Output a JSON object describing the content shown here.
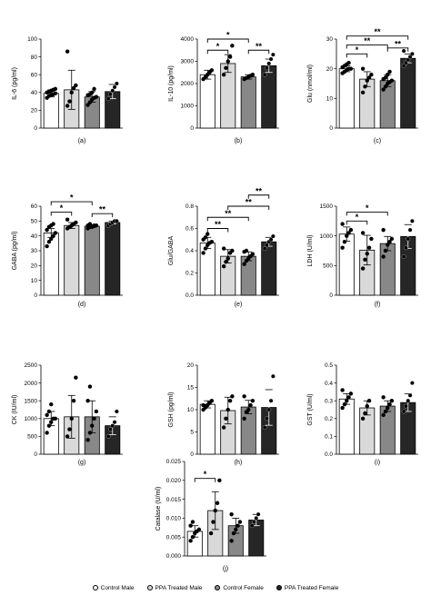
{
  "colors": {
    "control_male": "#ffffff",
    "ppa_male": "#d9d9d9",
    "control_female": "#888888",
    "ppa_female": "#262626"
  },
  "legend": [
    {
      "label": "Control Male",
      "color": "#ffffff"
    },
    {
      "label": "PPA Treated Male",
      "color": "#d9d9d9"
    },
    {
      "label": "Control Female",
      "color": "#888888"
    },
    {
      "label": "PPA Treated Female",
      "color": "#262626"
    }
  ],
  "chart_data": [
    {
      "type": "bar",
      "panel_label": "(a)",
      "ylabel": "IL-6 (pg/ml)",
      "ylim": [
        0,
        100
      ],
      "yticks": [
        "0",
        "20",
        "40",
        "60",
        "80",
        "100"
      ],
      "yticks_values": [
        0,
        20,
        40,
        60,
        80,
        100
      ],
      "values": [
        39,
        43,
        35,
        41
      ],
      "errors": [
        4,
        22,
        6,
        8
      ],
      "points": [
        [
          34,
          36,
          37,
          38,
          39,
          40,
          41,
          42,
          43,
          44
        ],
        [
          25,
          30,
          40,
          45,
          48,
          86
        ],
        [
          26,
          29,
          32,
          34,
          35,
          37,
          38,
          40,
          44
        ],
        [
          33,
          38,
          42,
          46,
          50
        ]
      ],
      "significance": []
    },
    {
      "type": "bar",
      "panel_label": "(b)",
      "ylabel": "IL-10 (pg/ml)",
      "ylim": [
        0,
        4000
      ],
      "yticks": [
        "0",
        "1000",
        "2000",
        "3000",
        "4000"
      ],
      "yticks_values": [
        0,
        1000,
        2000,
        3000,
        4000
      ],
      "values": [
        2400,
        2900,
        2300,
        2800
      ],
      "errors": [
        200,
        400,
        100,
        300
      ],
      "points": [
        [
          2200,
          2300,
          2400,
          2500,
          2600
        ],
        [
          2400,
          2700,
          3000,
          3200,
          3700
        ],
        [
          2200,
          2250,
          2300,
          2350,
          2400
        ],
        [
          2400,
          2700,
          2900,
          3100,
          3300
        ]
      ],
      "significance": [
        {
          "from": 0,
          "to": 1,
          "label": "*",
          "y": 3500
        },
        {
          "from": 0,
          "to": 2,
          "label": "*",
          "y": 4000
        },
        {
          "from": 2,
          "to": 3,
          "label": "**",
          "y": 3500
        }
      ]
    },
    {
      "type": "bar",
      "panel_label": "(c)",
      "ylabel": "Glu (nmol/ml)",
      "ylim": [
        0,
        30
      ],
      "yticks": [
        "0",
        "10",
        "20",
        "30"
      ],
      "yticks_values": [
        0,
        10,
        20,
        30
      ],
      "values": [
        20,
        16.5,
        16,
        23.5
      ],
      "errors": [
        1,
        2.5,
        2,
        1.5
      ],
      "points": [
        [
          18.5,
          19,
          19.5,
          20,
          20,
          20.5,
          21,
          21.5,
          22
        ],
        [
          12,
          14,
          16,
          17,
          18,
          20
        ],
        [
          13,
          14,
          15,
          15.5,
          16,
          16.5,
          17,
          18,
          19
        ],
        [
          21,
          22,
          23,
          24,
          25,
          26
        ]
      ],
      "significance": [
        {
          "from": 0,
          "to": 1,
          "label": "*",
          "y": 25
        },
        {
          "from": 0,
          "to": 2,
          "label": "**",
          "y": 28
        },
        {
          "from": 2,
          "to": 3,
          "label": "**",
          "y": 27
        },
        {
          "from": 0,
          "to": 3,
          "label": "**",
          "y": 31
        }
      ]
    },
    {
      "type": "bar",
      "panel_label": "(d)",
      "ylabel": "GABA (pg/ml)",
      "ylim": [
        0,
        60
      ],
      "yticks": [
        "0",
        "10",
        "20",
        "30",
        "40",
        "50",
        "60"
      ],
      "yticks_values": [
        0,
        10,
        20,
        30,
        40,
        50,
        60
      ],
      "values": [
        42,
        47,
        46.5,
        49
      ],
      "errors": [
        3,
        2,
        1,
        1
      ],
      "points": [
        [
          33,
          36,
          38,
          40,
          42,
          44,
          46,
          47,
          48
        ],
        [
          45,
          46,
          47,
          48,
          49,
          51
        ],
        [
          45,
          46,
          46,
          47,
          47,
          47,
          48
        ],
        [
          47,
          48,
          49,
          50,
          50
        ]
      ],
      "significance": [
        {
          "from": 0,
          "to": 1,
          "label": "*",
          "y": 56
        },
        {
          "from": 0,
          "to": 2,
          "label": "*",
          "y": 63
        },
        {
          "from": 2,
          "to": 3,
          "label": "**",
          "y": 55
        }
      ]
    },
    {
      "type": "bar",
      "panel_label": "(e)",
      "ylabel": "Glu/GABA",
      "ylim": [
        0,
        0.8
      ],
      "yticks": [
        "0.0",
        "0.2",
        "0.4",
        "0.6",
        "0.8"
      ],
      "yticks_values": [
        0,
        0.2,
        0.4,
        0.6,
        0.8
      ],
      "values": [
        0.47,
        0.35,
        0.35,
        0.48
      ],
      "errors": [
        0.05,
        0.06,
        0.04,
        0.04
      ],
      "points": [
        [
          0.38,
          0.42,
          0.45,
          0.47,
          0.48,
          0.5,
          0.52,
          0.55
        ],
        [
          0.26,
          0.3,
          0.33,
          0.38,
          0.4,
          0.42
        ],
        [
          0.28,
          0.31,
          0.33,
          0.35,
          0.37,
          0.39,
          0.4
        ],
        [
          0.42,
          0.45,
          0.48,
          0.5,
          0.53
        ]
      ],
      "significance": [
        {
          "from": 0,
          "to": 1,
          "label": "**",
          "y": 0.6
        },
        {
          "from": 0,
          "to": 2,
          "label": "**",
          "y": 0.7
        },
        {
          "from": 1,
          "to": 3,
          "label": "**",
          "y": 0.8
        },
        {
          "from": 2,
          "to": 3,
          "label": "**",
          "y": 0.9
        }
      ]
    },
    {
      "type": "bar",
      "panel_label": "(f)",
      "ylabel": "LDH (U/ml)",
      "ylim": [
        0,
        1500
      ],
      "yticks": [
        "0",
        "500",
        "1000",
        "1500"
      ],
      "yticks_values": [
        0,
        500,
        1000,
        1500
      ],
      "values": [
        1030,
        760,
        870,
        990
      ],
      "errors": [
        120,
        250,
        120,
        200
      ],
      "points": [
        [
          800,
          900,
          1000,
          1050,
          1100,
          1200
        ],
        [
          450,
          600,
          700,
          800,
          950,
          1050
        ],
        [
          650,
          750,
          850,
          900,
          950,
          1100
        ],
        [
          650,
          800,
          950,
          1100,
          1250
        ]
      ],
      "significance": [
        {
          "from": 0,
          "to": 1,
          "label": "*",
          "y": 1250
        },
        {
          "from": 0,
          "to": 2,
          "label": "*",
          "y": 1400
        }
      ]
    },
    {
      "type": "bar",
      "panel_label": "(g)",
      "ylabel": "CK (IU/ml)",
      "ylim": [
        0,
        2500
      ],
      "yticks": [
        "0",
        "500",
        "1000",
        "1500",
        "2000",
        "2500"
      ],
      "yticks_values": [
        0,
        500,
        1000,
        1500,
        2000,
        2500
      ],
      "values": [
        1000,
        1050,
        1050,
        800
      ],
      "errors": [
        200,
        600,
        450,
        250
      ],
      "points": [
        [
          600,
          800,
          900,
          1000,
          1000,
          1100,
          1200,
          1400
        ],
        [
          500,
          700,
          1000,
          1500,
          2150
        ],
        [
          400,
          600,
          800,
          1000,
          1200,
          1500,
          1900
        ],
        [
          500,
          700,
          800,
          900,
          1200
        ]
      ],
      "significance": []
    },
    {
      "type": "bar",
      "panel_label": "(h)",
      "ylabel": "GSH (pg/ml)",
      "ylim": [
        0,
        20
      ],
      "yticks": [
        "0",
        "5",
        "10",
        "15",
        "20"
      ],
      "yticks_values": [
        0,
        5,
        10,
        15,
        20
      ],
      "values": [
        11.2,
        9.8,
        10.6,
        10.5
      ],
      "errors": [
        0.8,
        3,
        1.5,
        4
      ],
      "points": [
        [
          10,
          10.5,
          11,
          11.5,
          12,
          11,
          10.8
        ],
        [
          6,
          8,
          10,
          12,
          13
        ],
        [
          8,
          9.5,
          10,
          11,
          12,
          13
        ],
        [
          6,
          8,
          10,
          12,
          17.5
        ]
      ],
      "significance": []
    },
    {
      "type": "bar",
      "panel_label": "(i)",
      "ylabel": "GST (U/ml)",
      "ylim": [
        0,
        0.5
      ],
      "yticks": [
        "0.0",
        "0.1",
        "0.2",
        "0.3",
        "0.4",
        "0.5"
      ],
      "yticks_values": [
        0,
        0.1,
        0.2,
        0.3,
        0.4,
        0.5
      ],
      "values": [
        0.31,
        0.26,
        0.27,
        0.29
      ],
      "errors": [
        0.03,
        0.04,
        0.03,
        0.05
      ],
      "points": [
        [
          0.26,
          0.28,
          0.3,
          0.32,
          0.34,
          0.36
        ],
        [
          0.2,
          0.23,
          0.27,
          0.3
        ],
        [
          0.22,
          0.24,
          0.26,
          0.28,
          0.3,
          0.32
        ],
        [
          0.24,
          0.27,
          0.3,
          0.33,
          0.4
        ]
      ],
      "significance": []
    },
    {
      "type": "bar",
      "panel_label": "(j)",
      "ylabel": "Catalase (U/ml)",
      "ylim": [
        0,
        0.025
      ],
      "yticks": [
        "0.000",
        "0.005",
        "0.010",
        "0.015",
        "0.020",
        "0.025"
      ],
      "yticks_values": [
        0,
        0.005,
        0.01,
        0.015,
        0.02,
        0.025
      ],
      "values": [
        0.0065,
        0.012,
        0.008,
        0.0095
      ],
      "errors": [
        0.0015,
        0.005,
        0.002,
        0.0015
      ],
      "points": [
        [
          0.004,
          0.005,
          0.006,
          0.0065,
          0.007,
          0.008,
          0.009
        ],
        [
          0.006,
          0.009,
          0.012,
          0.014,
          0.02
        ],
        [
          0.004,
          0.006,
          0.007,
          0.008,
          0.009,
          0.011
        ],
        [
          0.008,
          0.009,
          0.01,
          0.011
        ]
      ],
      "significance": [
        {
          "from": 0,
          "to": 1,
          "label": "*",
          "y": 0.0205
        }
      ]
    }
  ]
}
